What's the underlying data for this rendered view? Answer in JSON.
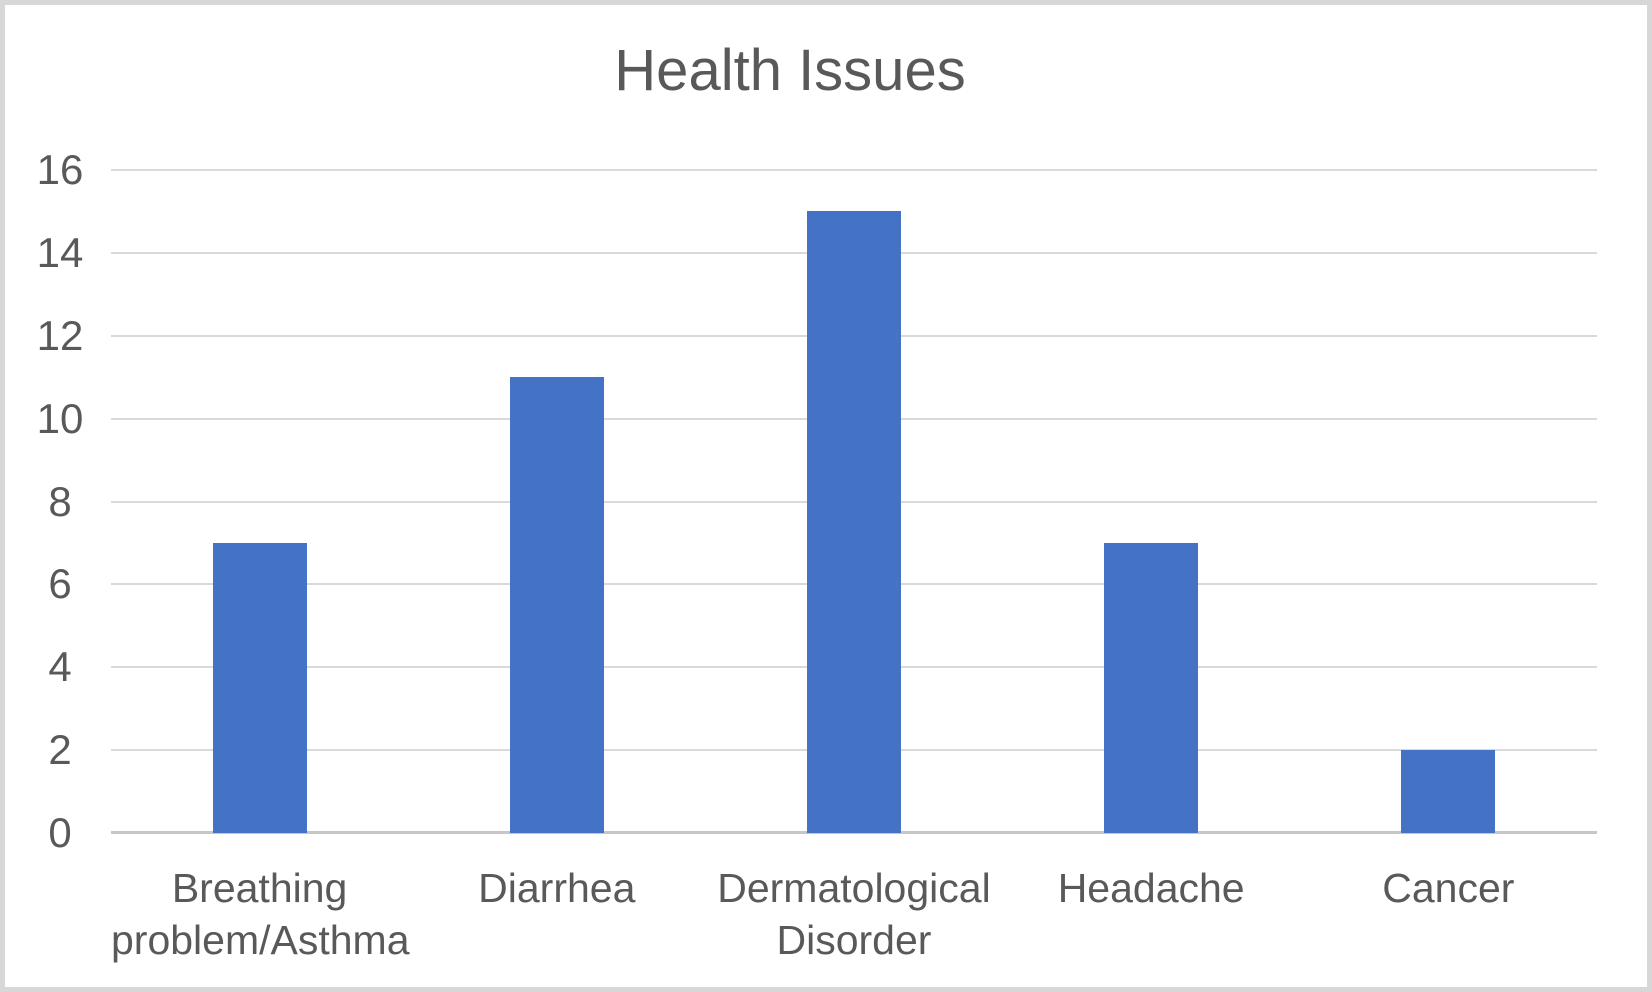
{
  "chart_data": {
    "type": "bar",
    "title": "Health Issues",
    "categories": [
      "Breathing problem/Asthma",
      "Diarrhea",
      "Dermatological Disorder",
      "Headache",
      "Cancer"
    ],
    "values": [
      7,
      11,
      15,
      7,
      2
    ],
    "xlabel": "",
    "ylabel": "",
    "ylim": [
      0,
      16
    ],
    "yticks": [
      0,
      2,
      4,
      6,
      8,
      10,
      12,
      14,
      16
    ],
    "grid": "horizontal",
    "legend": "none",
    "colors": {
      "bar": "#4472C4",
      "text": "#595959",
      "gridline": "#D9D9D9",
      "axis_line": "#C6C6C6",
      "frame_border": "#D7D7D7",
      "background": "#FFFFFF"
    }
  }
}
